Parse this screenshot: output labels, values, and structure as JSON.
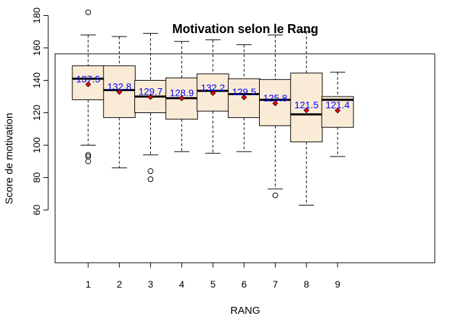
{
  "chart_data": {
    "type": "boxplot",
    "title": "Motivation selon le Rang",
    "xlabel": "RANG",
    "ylabel": "Score de motivation",
    "ylim": [
      60,
      185
    ],
    "yticks": [
      60,
      80,
      100,
      120,
      140,
      160,
      180
    ],
    "grid": false,
    "colors": {
      "box_fill": "#FAEBD7",
      "box_stroke": "#000000",
      "median": "#000000",
      "mean_marker": "#FF0000",
      "mean_label": "#0000FF"
    },
    "groups": [
      {
        "label": "1",
        "lower_whisker": 100,
        "q1": 128,
        "median": 141,
        "q3": 149,
        "upper_whisker": 168,
        "outliers": [
          182,
          94,
          93,
          90
        ],
        "mean": 137.5,
        "mean_label": "137.5"
      },
      {
        "label": "2",
        "lower_whisker": 86,
        "q1": 117,
        "median": 134,
        "q3": 149,
        "upper_whisker": 167,
        "outliers": [],
        "mean": 132.8,
        "mean_label": "132.8"
      },
      {
        "label": "3",
        "lower_whisker": 94,
        "q1": 120,
        "median": 130,
        "q3": 140,
        "upper_whisker": 169,
        "outliers": [
          84,
          79
        ],
        "mean": 129.7,
        "mean_label": "129.7"
      },
      {
        "label": "4",
        "lower_whisker": 96,
        "q1": 116,
        "median": 129,
        "q3": 141.5,
        "upper_whisker": 164,
        "outliers": [],
        "mean": 128.9,
        "mean_label": "128.9"
      },
      {
        "label": "5",
        "lower_whisker": 95,
        "q1": 121,
        "median": 133.5,
        "q3": 144,
        "upper_whisker": 165,
        "outliers": [],
        "mean": 132.2,
        "mean_label": "132.2"
      },
      {
        "label": "6",
        "lower_whisker": 96,
        "q1": 117,
        "median": 131.5,
        "q3": 141,
        "upper_whisker": 162,
        "outliers": [],
        "mean": 129.5,
        "mean_label": "129.5"
      },
      {
        "label": "7",
        "lower_whisker": 73,
        "q1": 112,
        "median": 128,
        "q3": 140.5,
        "upper_whisker": 168,
        "outliers": [
          69
        ],
        "mean": 125.8,
        "mean_label": "125.8"
      },
      {
        "label": "8",
        "lower_whisker": 63,
        "q1": 102,
        "median": 119,
        "q3": 144.5,
        "upper_whisker": 170,
        "outliers": [],
        "mean": 121.5,
        "mean_label": "121.5"
      },
      {
        "label": "9",
        "lower_whisker": 93,
        "q1": 111,
        "median": 128,
        "q3": 130,
        "upper_whisker": 145,
        "outliers": [],
        "mean": 121.4,
        "mean_label": "121.4"
      }
    ]
  }
}
